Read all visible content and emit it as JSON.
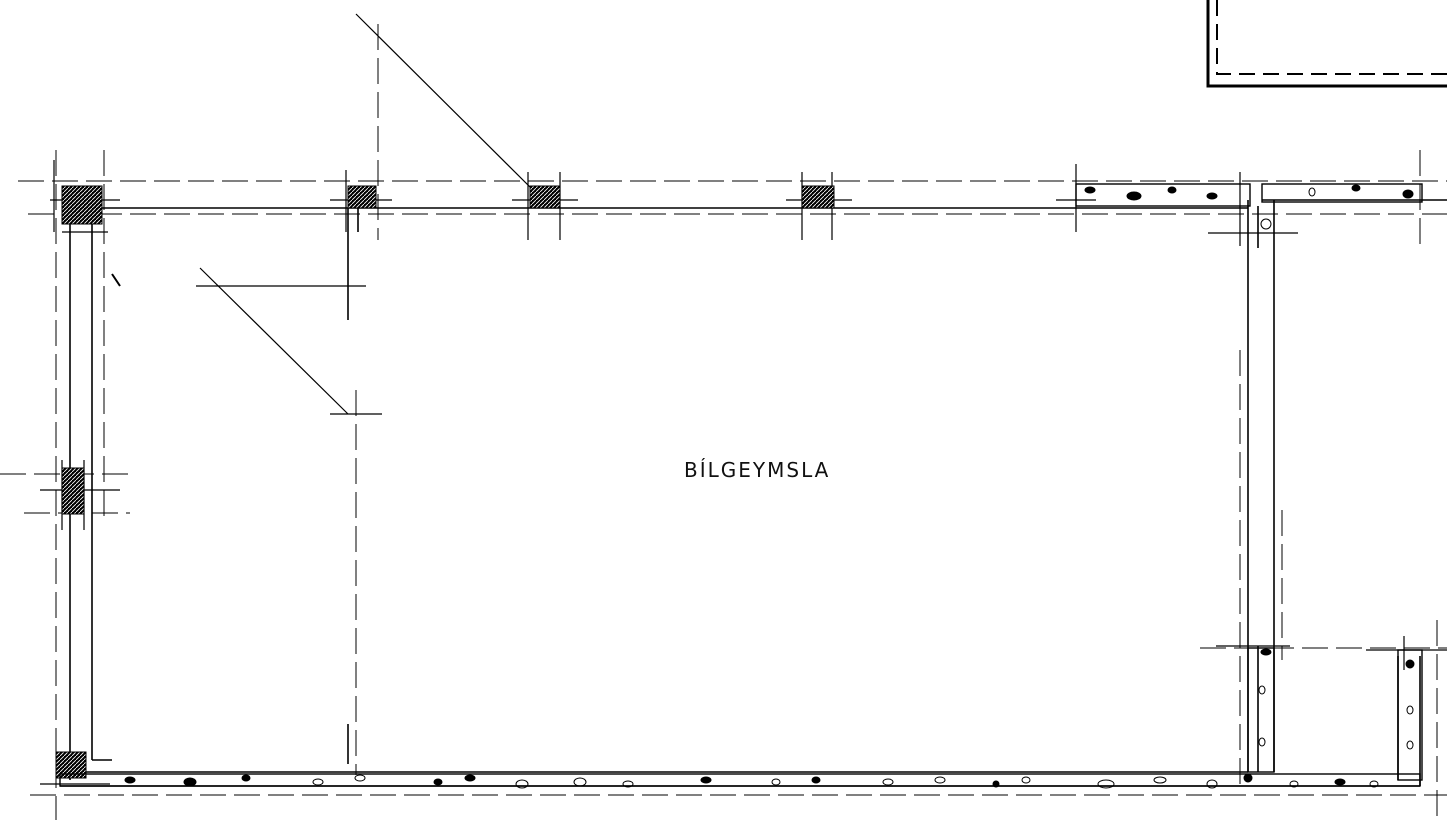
{
  "drawing": {
    "room_label": "BÍLGEYMSLA",
    "ink_color": "#000000",
    "paper_color": "#ffffff"
  }
}
